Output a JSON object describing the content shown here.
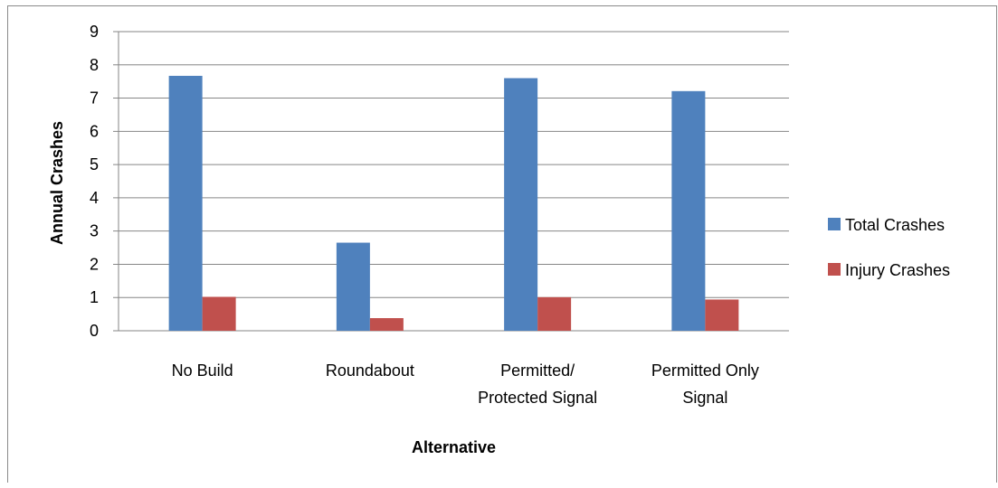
{
  "chart_data": {
    "type": "bar",
    "title": "",
    "xlabel": "Alternative",
    "ylabel": "Annual Crashes",
    "ylim": [
      0,
      9
    ],
    "yticks": [
      0,
      1,
      2,
      3,
      4,
      5,
      6,
      7,
      8,
      9
    ],
    "grid": true,
    "legend_position": "right",
    "categories": [
      [
        "No Build"
      ],
      [
        "Roundabout"
      ],
      [
        "Permitted/",
        "Protected Signal"
      ],
      [
        "Permitted Only",
        "Signal"
      ]
    ],
    "series": [
      {
        "name": "Total Crashes",
        "color": "#4F81BD",
        "values": [
          7.67,
          2.65,
          7.6,
          7.21
        ]
      },
      {
        "name": "Injury Crashes",
        "color": "#C0504D",
        "values": [
          1.02,
          0.38,
          1.01,
          0.94
        ]
      }
    ]
  }
}
